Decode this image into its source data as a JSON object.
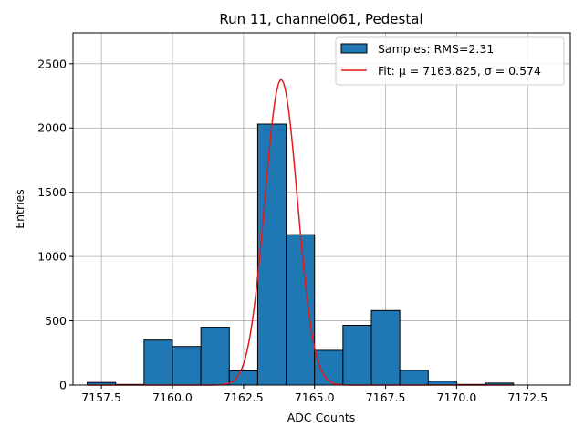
{
  "chart_data": {
    "type": "bar",
    "title": "Run 11, channel061, Pedestal",
    "xlabel": "ADC Counts",
    "ylabel": "Entries",
    "xlim": [
      7156.5,
      7174.0
    ],
    "ylim": [
      0,
      2740
    ],
    "grid": true,
    "legend_position": "top-right",
    "xticks": [
      7157.5,
      7160.0,
      7162.5,
      7165.0,
      7167.5,
      7170.0,
      7172.5
    ],
    "xtick_labels": [
      "7157.5",
      "7160.0",
      "7162.5",
      "7165.0",
      "7167.5",
      "7170.0",
      "7172.5"
    ],
    "yticks": [
      0,
      500,
      1000,
      1500,
      2000,
      2500
    ],
    "ytick_labels": [
      "0",
      "500",
      "1000",
      "1500",
      "2000",
      "2500"
    ],
    "histogram": {
      "name": "Samples: RMS=2.31",
      "color": "#1f77b4",
      "bin_edges": [
        7157,
        7158,
        7159,
        7160,
        7161,
        7162,
        7163,
        7164,
        7165,
        7166,
        7167,
        7168,
        7169,
        7170,
        7171,
        7172
      ],
      "values": [
        20,
        5,
        350,
        300,
        450,
        110,
        2030,
        1170,
        270,
        465,
        580,
        115,
        30,
        5,
        15
      ]
    },
    "fit": {
      "name": "Fit: μ = 7163.825, σ = 0.574",
      "color": "#e41a1c",
      "mu": 7163.825,
      "sigma": 0.574,
      "amplitude": 2375,
      "x_range": [
        7157,
        7172
      ]
    }
  }
}
